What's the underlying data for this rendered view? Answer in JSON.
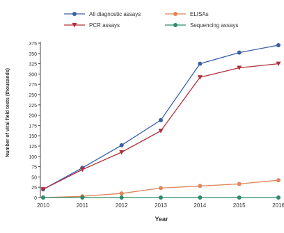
{
  "chart_data": {
    "type": "line",
    "xlabel": "Year",
    "ylabel": "Number of viral field tests (thousands)",
    "x": [
      2010,
      2011,
      2012,
      2013,
      2014,
      2015,
      2016
    ],
    "ylim": [
      0,
      375
    ],
    "yticks": [
      0,
      25,
      50,
      75,
      100,
      125,
      150,
      175,
      200,
      225,
      250,
      275,
      300,
      325,
      350,
      375
    ],
    "grid": false,
    "legend_position": "top",
    "series": [
      {
        "name": "All diagnostic assays",
        "values": [
          20,
          72,
          127,
          188,
          325,
          352,
          370
        ],
        "color": "#3a5fa8",
        "marker": "circle"
      },
      {
        "name": "PCR assays",
        "values": [
          20,
          68,
          110,
          162,
          292,
          315,
          325
        ],
        "color": "#b0303a",
        "marker": "triangle-down"
      },
      {
        "name": "ELISAs",
        "values": [
          0,
          3,
          10,
          23,
          28,
          33,
          42
        ],
        "color": "#e0855a",
        "marker": "circle"
      },
      {
        "name": "Sequencing assays",
        "values": [
          0,
          0,
          0,
          0,
          0,
          0,
          0
        ],
        "color": "#2f8a6a",
        "marker": "circle"
      }
    ]
  }
}
